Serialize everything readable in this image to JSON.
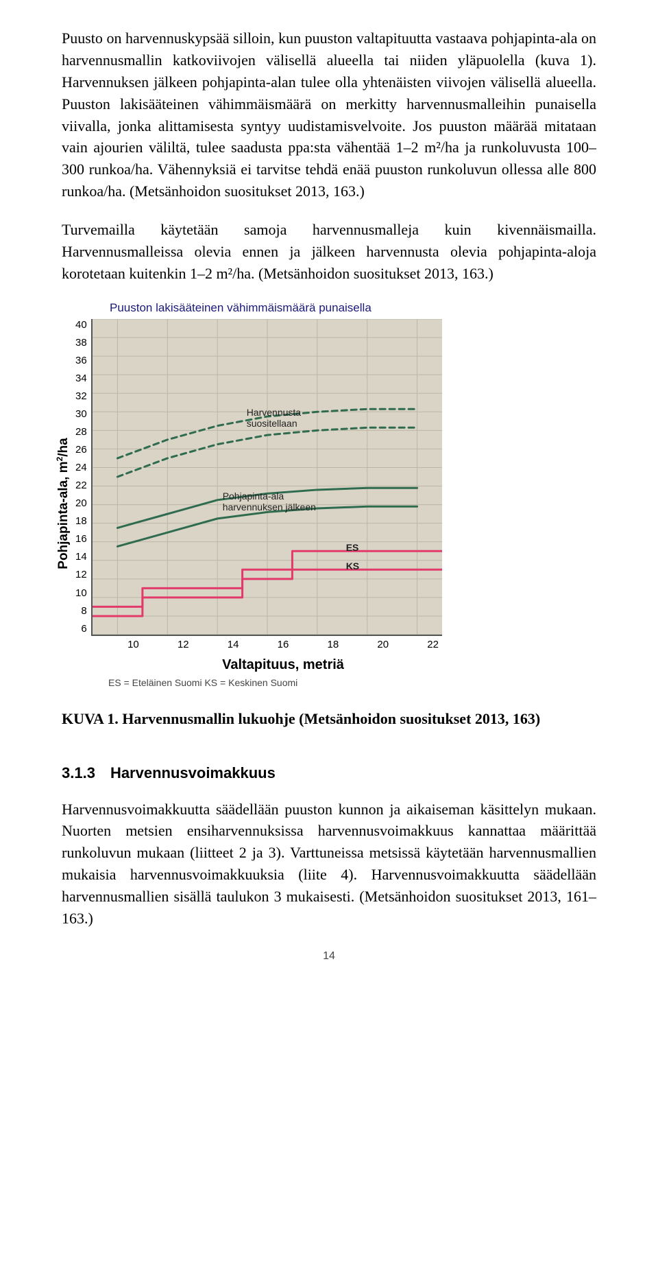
{
  "body": {
    "p1": "Puusto on harvennuskypsää silloin, kun puuston valtapituutta vastaava pohjapinta-ala on harvennusmallin katkoviivojen välisellä alueella tai niiden yläpuolella (kuva 1). Harvennuksen jälkeen pohjapinta-alan tulee olla yhtenäisten viivojen välisellä alueella. Puuston lakisääteinen vähimmäismäärä on merkitty harvennusmalleihin punaisella viivalla, jonka alittamisesta syntyy uudistamisvelvoite. Jos puuston määrää mitataan vain ajourien väliltä, tulee saadusta ppa:sta vähentää 1–2 m²/ha ja runkoluvusta 100–300 runkoa/ha. Vähennyksiä ei tarvitse tehdä enää puuston runkoluvun ollessa alle 800 runkoa/ha. (Metsänhoidon suositukset 2013, 163.)",
    "p2": "Turvemailla käytetään samoja harvennusmalleja kuin kivennäismailla. Harvennusmalleissa olevia ennen ja jälkeen harvennusta olevia pohjapinta-aloja korotetaan kuitenkin 1–2 m²/ha. (Metsänhoidon suositukset 2013, 163.)",
    "fig_caption": "KUVA 1. Harvennusmallin lukuohje (Metsänhoidon suositukset 2013, 163)",
    "section_num": "3.1.3",
    "section_title": "Harvennusvoimakkuus",
    "p3": "Harvennusvoimakkuutta säädellään puuston kunnon ja aikaiseman käsittelyn mukaan. Nuorten metsien ensiharvennuksissa harvennusvoimakkuus kannattaa määrittää runkoluvun mukaan (liitteet 2 ja 3). Varttuneissa metsissä käytetään harvennusmallien mukaisia harvennusvoimakkuuksia (liite 4). Harvennusvoimakkuutta säädellään harvennusmallien sisällä taulukon 3 mukaisesti. (Metsänhoidon suositukset 2013, 161–163.)"
  },
  "chart": {
    "title": "Puuston lakisääteinen vähimmäismäärä punaisella",
    "ylabel_a": "Pohjapinta-ala, m",
    "ylabel_b": "/ha",
    "xlabel": "Valtapituus, metriä",
    "legend": "ES = Eteläinen Suomi   KS = Keskinen Suomi",
    "ylim": [
      6,
      40
    ],
    "xlim": [
      9,
      23
    ],
    "yticks": [
      40,
      38,
      36,
      34,
      32,
      30,
      28,
      26,
      24,
      22,
      20,
      18,
      16,
      14,
      12,
      10,
      8,
      6
    ],
    "xticks": [
      10,
      12,
      14,
      16,
      18,
      20,
      22
    ],
    "background_color": "#d9d4c6",
    "grid_color": "#bcb7a4",
    "anno_rec_a": "Harvennusta",
    "anno_rec_b": "suositellaan",
    "anno_after_a": "Pohjapinta-ala",
    "anno_after_b": "harvennuksen jälkeen",
    "label_es": "ES",
    "label_ks": "KS",
    "series": {
      "dash_upper": {
        "color": "#2f6b4f",
        "width": 3,
        "dash": "8 6",
        "points": [
          [
            10,
            25
          ],
          [
            12,
            27
          ],
          [
            14,
            28.5
          ],
          [
            16,
            29.5
          ],
          [
            18,
            30
          ],
          [
            20,
            30.3
          ],
          [
            22,
            30.3
          ]
        ]
      },
      "dash_lower": {
        "color": "#2f6b4f",
        "width": 3,
        "dash": "8 6",
        "points": [
          [
            10,
            23
          ],
          [
            12,
            25
          ],
          [
            14,
            26.5
          ],
          [
            16,
            27.5
          ],
          [
            18,
            28
          ],
          [
            20,
            28.3
          ],
          [
            22,
            28.3
          ]
        ]
      },
      "solid_upper": {
        "color": "#2f6b4f",
        "width": 3,
        "points": [
          [
            10,
            17.5
          ],
          [
            12,
            19
          ],
          [
            14,
            20.5
          ],
          [
            16,
            21.2
          ],
          [
            18,
            21.6
          ],
          [
            20,
            21.8
          ],
          [
            22,
            21.8
          ]
        ]
      },
      "solid_lower": {
        "color": "#2f6b4f",
        "width": 3,
        "points": [
          [
            10,
            15.5
          ],
          [
            12,
            17
          ],
          [
            14,
            18.5
          ],
          [
            16,
            19.2
          ],
          [
            18,
            19.6
          ],
          [
            20,
            19.8
          ],
          [
            22,
            19.8
          ]
        ]
      },
      "es": {
        "color": "#e23b6b",
        "width": 3,
        "steps": [
          [
            9,
            9,
            11
          ],
          [
            11,
            11,
            13
          ],
          [
            13,
            11,
            15
          ],
          [
            15,
            13,
            17
          ],
          [
            17,
            15,
            19
          ],
          [
            19,
            15,
            23
          ]
        ]
      },
      "ks": {
        "color": "#e23b6b",
        "width": 3,
        "steps": [
          [
            9,
            8,
            11
          ],
          [
            11,
            10,
            13
          ],
          [
            13,
            10,
            15
          ],
          [
            15,
            12,
            17
          ],
          [
            17,
            13,
            19
          ],
          [
            19,
            13,
            23
          ]
        ]
      }
    }
  },
  "page_number": "14"
}
